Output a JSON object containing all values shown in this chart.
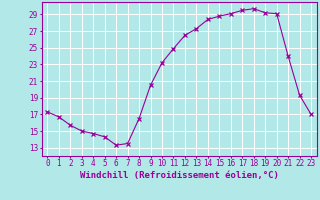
{
  "hours": [
    0,
    1,
    2,
    3,
    4,
    5,
    6,
    7,
    8,
    9,
    10,
    11,
    12,
    13,
    14,
    15,
    16,
    17,
    18,
    19,
    20,
    21,
    22,
    23
  ],
  "windchill": [
    17.3,
    16.7,
    15.7,
    15.0,
    14.7,
    14.3,
    13.3,
    13.5,
    16.5,
    20.5,
    23.2,
    24.9,
    26.5,
    27.3,
    28.4,
    28.8,
    29.1,
    29.5,
    29.7,
    29.2,
    29.1,
    24.0,
    19.3,
    17.0
  ],
  "line_color": "#990099",
  "marker": "x",
  "bg_color": "#b3e8e8",
  "grid_color": "#ffffff",
  "xlabel": "Windchill (Refroidissement éolien,°C)",
  "xlim": [
    -0.5,
    23.5
  ],
  "ylim": [
    12,
    30.5
  ],
  "yticks": [
    13,
    15,
    17,
    19,
    21,
    23,
    25,
    27,
    29
  ],
  "xticks": [
    0,
    1,
    2,
    3,
    4,
    5,
    6,
    7,
    8,
    9,
    10,
    11,
    12,
    13,
    14,
    15,
    16,
    17,
    18,
    19,
    20,
    21,
    22,
    23
  ],
  "label_fontsize": 6.5,
  "tick_fontsize": 5.5
}
